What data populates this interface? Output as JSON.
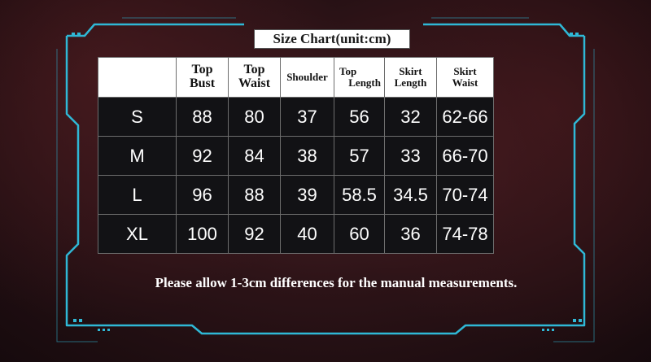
{
  "title": "Size Chart(unit:cm)",
  "accent_color": "#2fb8d6",
  "table": {
    "headers": [
      {
        "line1": "",
        "line2": ""
      },
      {
        "line1": "Top",
        "line2": "Bust"
      },
      {
        "line1": "Top",
        "line2": "Waist"
      },
      {
        "line1": "Shoulder",
        "line2": ""
      },
      {
        "line1": "Top",
        "line2": "Length"
      },
      {
        "line1": "Skirt",
        "line2": "Length"
      },
      {
        "line1": "Skirt",
        "line2": "Waist"
      }
    ],
    "rows": [
      [
        "S",
        "88",
        "80",
        "37",
        "56",
        "32",
        "62-66"
      ],
      [
        "M",
        "92",
        "84",
        "38",
        "57",
        "33",
        "66-70"
      ],
      [
        "L",
        "96",
        "88",
        "39",
        "58.5",
        "34.5",
        "70-74"
      ],
      [
        "XL",
        "100",
        "92",
        "40",
        "60",
        "36",
        "74-78"
      ]
    ]
  },
  "note": "Please allow 1-3cm differences for the manual measurements."
}
